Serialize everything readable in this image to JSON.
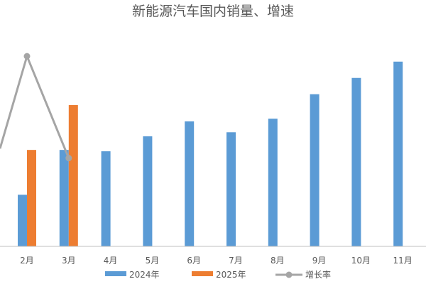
{
  "chart_data": {
    "type": "bar",
    "title": "新能源汽车国内销量、增速",
    "categories": [
      "2月",
      "3月",
      "4月",
      "5月",
      "6月",
      "7月",
      "8月",
      "9月",
      "10月",
      "11月"
    ],
    "series": [
      {
        "name": "2024年",
        "kind": "bar",
        "color": "#5B9BD5",
        "values": [
          38,
          71,
          70,
          81,
          92,
          84,
          94,
          112,
          124,
          136
        ]
      },
      {
        "name": "2025年",
        "kind": "bar",
        "color": "#ED7D31",
        "values": [
          71,
          104,
          null,
          null,
          null,
          null,
          null,
          null,
          null,
          null
        ]
      },
      {
        "name": "增长率",
        "kind": "line",
        "color": "#A5A5A5",
        "marker": "circle",
        "values": [
          null,
          null,
          null,
          null,
          null,
          null,
          null,
          null,
          null,
          null
        ],
        "partial_line_points": [
          {
            "x_position": 0.5,
            "y": 72
          },
          {
            "x": "2月",
            "y": 140
          },
          {
            "x": "3月",
            "y": 65
          }
        ],
        "note": "line drawn on an unlabelled secondary scale; no values printed"
      }
    ],
    "xlabel": "",
    "ylabel": "",
    "ylim": [
      0,
      150
    ],
    "axes": {
      "y_axis_visible": false,
      "gridlines": false
    },
    "legend": {
      "position": "bottom"
    }
  }
}
